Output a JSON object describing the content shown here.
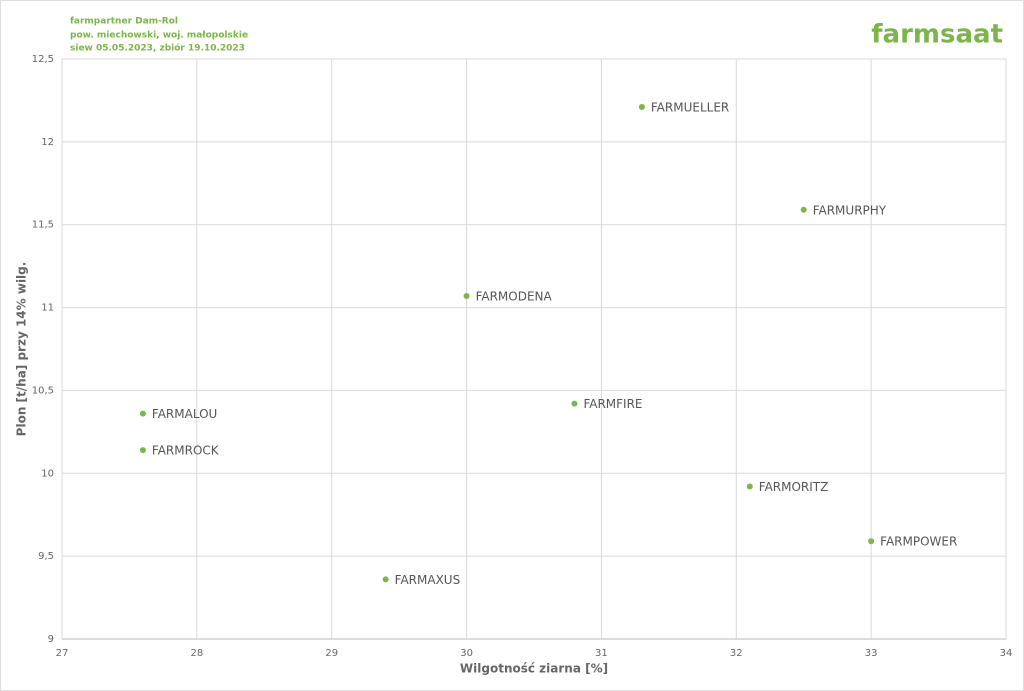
{
  "chart_data": {
    "type": "scatter",
    "title": "farmpartner Dam-Rol",
    "subtitle": [
      "pow. miechowski, woj. małopolskie",
      "siew 05.05.2023, zbiór 19.10.2023"
    ],
    "logo": "farmsaat",
    "x_label": "Wilgotność ziarna [%]",
    "y_label": "Plon [t/ha] przy 14% wilg.",
    "point_labels": [
      "FARMUELLER",
      "FARMURPHY",
      "FARMODENA",
      "FARMALOU",
      "FARMROCK",
      "FARMFIRE",
      "FARMORITZ",
      "FARMPOWER",
      "FARMAXUS"
    ],
    "x": [
      31.3,
      32.5,
      30.0,
      27.6,
      27.6,
      30.8,
      32.1,
      33.0,
      29.4
    ],
    "values": [
      12.21,
      11.59,
      11.07,
      10.36,
      10.14,
      10.42,
      9.92,
      9.59,
      9.36
    ],
    "color": "#7ab648",
    "xlim": [
      27,
      34
    ],
    "xticks": [
      27,
      28,
      29,
      30,
      31,
      32,
      33,
      34
    ],
    "ylim": [
      9,
      12.5
    ],
    "yticks": [
      9,
      {
        "value": 9.5,
        "label": "9,5"
      },
      10,
      {
        "value": 10.5,
        "label": "10,5"
      },
      11,
      {
        "value": 11.5,
        "label": "11,5"
      },
      12,
      {
        "value": 12.5,
        "label": "12,5"
      }
    ],
    "grid": true
  }
}
